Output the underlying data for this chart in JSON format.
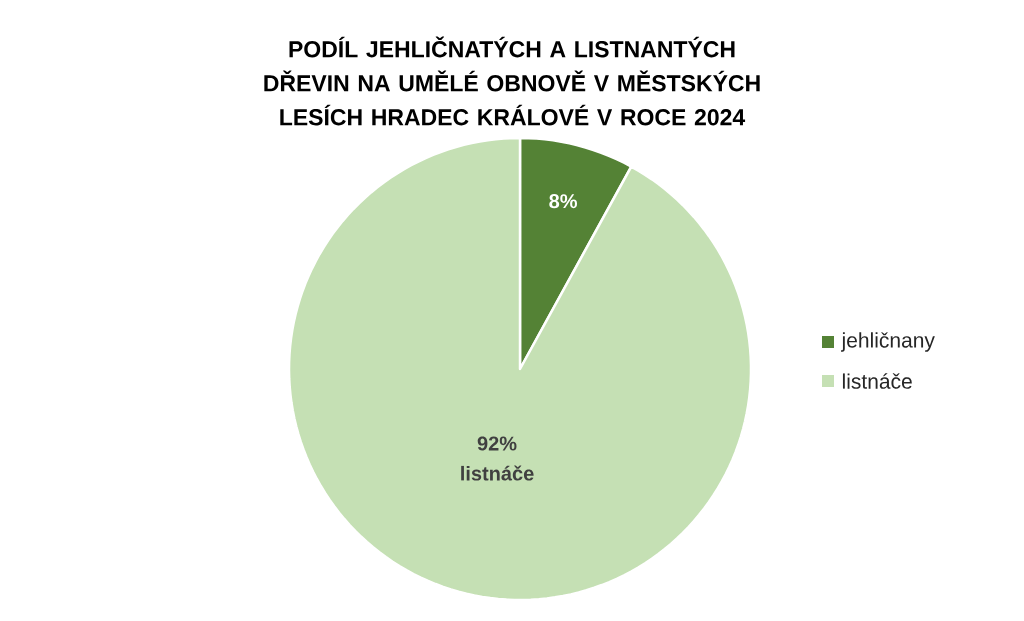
{
  "chart_data": {
    "type": "pie",
    "title": "PODÍL JEHLIČNATÝCH A LISTNANTÝCH DŘEVIN NA UMĚLÉ OBNOVĚ V MĚSTSKÝCH LESÍCH HRADEC KRÁLOVÉ V ROCE 2024",
    "categories": [
      "jehličnany",
      "listnáče"
    ],
    "values": [
      8,
      92
    ],
    "colors": [
      "#548235",
      "#c5e0b4"
    ],
    "value_labels": [
      "8%",
      "92% listnáče"
    ],
    "legend": "right"
  }
}
